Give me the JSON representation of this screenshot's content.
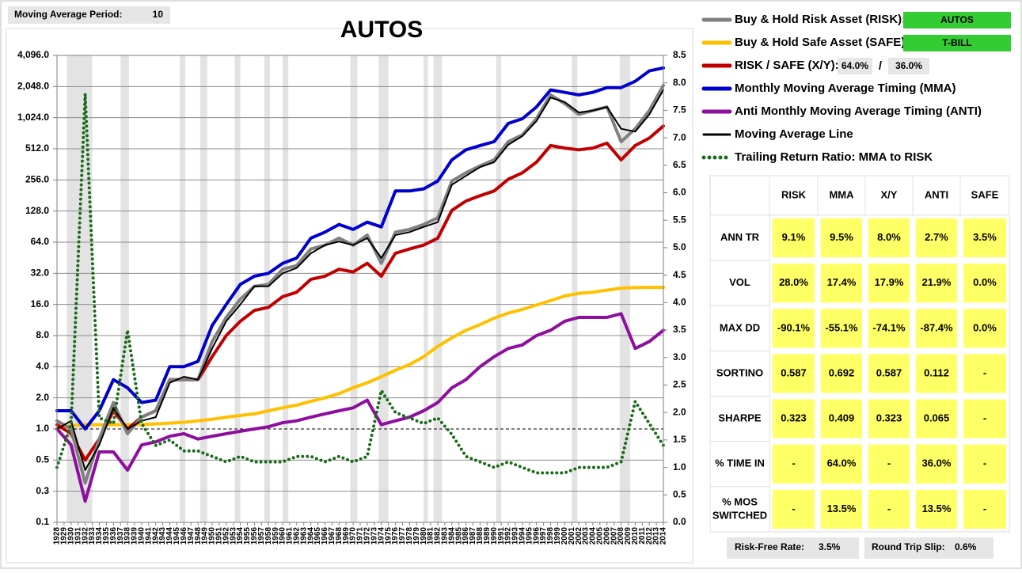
{
  "header": {
    "label": "Moving Average Period:",
    "value": 10
  },
  "controls": {
    "risk_asset": "AUTOS",
    "safe_asset": "T-BILL",
    "risk_weight": "64.0%",
    "separator": "/",
    "safe_weight": "36.0%"
  },
  "chart_data": {
    "type": "line",
    "title": "AUTOS",
    "log_scale": true,
    "grid": true,
    "xlim": [
      1928,
      2014
    ],
    "ylim": [
      0.125,
      4096
    ],
    "y2lim": [
      0,
      8.5
    ],
    "yticks": [
      {
        "value": 0.125,
        "label": "0.1"
      },
      {
        "value": 0.25,
        "label": "0.3"
      },
      0.5,
      {
        "value": 1,
        "label": "1.0"
      },
      {
        "value": 2,
        "label": "2.0"
      },
      {
        "value": 4,
        "label": "4.0"
      },
      {
        "value": 8,
        "label": "8.0"
      },
      {
        "value": 16,
        "label": "16.0"
      },
      {
        "value": 32,
        "label": "32.0"
      },
      {
        "value": 64,
        "label": "64.0"
      },
      {
        "value": 128,
        "label": "128.0"
      },
      {
        "value": 256,
        "label": "256.0"
      },
      {
        "value": 512,
        "label": "512.0"
      },
      {
        "value": 1024,
        "label": "1,024.0"
      },
      {
        "value": 2048,
        "label": "2,048.0"
      },
      {
        "value": 4096,
        "label": "4,096.0"
      }
    ],
    "y2ticks": [
      {
        "value": 0,
        "label": "0.0"
      },
      0.5,
      {
        "value": 1,
        "label": "1.0"
      },
      1.5,
      {
        "value": 2,
        "label": "2.0"
      },
      2.5,
      {
        "value": 3,
        "label": "3.0"
      },
      3.5,
      {
        "value": 4,
        "label": "4.0"
      },
      4.5,
      {
        "value": 5,
        "label": "5.0"
      },
      5.5,
      {
        "value": 6,
        "label": "6.0"
      },
      6.5,
      {
        "value": 7,
        "label": "7.0"
      },
      7.5,
      {
        "value": 8,
        "label": "8.0"
      },
      8.5
    ],
    "xticks": [
      1928,
      1929,
      1930,
      1931,
      1932,
      1933,
      1934,
      1935,
      1936,
      1937,
      1938,
      1939,
      1940,
      1941,
      1942,
      1943,
      1944,
      1945,
      1946,
      1947,
      1948,
      1949,
      1950,
      1951,
      1952,
      1953,
      1954,
      1955,
      1956,
      1957,
      1958,
      1959,
      1960,
      1961,
      1962,
      1963,
      1964,
      1965,
      1966,
      1967,
      1968,
      1969,
      1970,
      1971,
      1972,
      1973,
      1974,
      1975,
      1976,
      1977,
      1978,
      1979,
      1980,
      1981,
      1982,
      1983,
      1984,
      1985,
      1986,
      1987,
      1988,
      1989,
      1990,
      1991,
      1992,
      1993,
      1994,
      1995,
      1996,
      1997,
      1998,
      1999,
      2000,
      2001,
      2002,
      2003,
      2004,
      2005,
      2006,
      2007,
      2008,
      2009,
      2010,
      2011,
      2012,
      2013,
      2014
    ],
    "shaded_periods": [
      [
        1929.4,
        1933.0
      ],
      [
        1937.0,
        1938.2
      ],
      [
        1945.4,
        1946.2
      ],
      [
        1948.3,
        1949.3
      ],
      [
        1953.2,
        1954.0
      ],
      [
        1957.4,
        1958.2
      ],
      [
        1960.0,
        1960.8
      ],
      [
        1969.6,
        1970.6
      ],
      [
        1973.6,
        1975.0
      ],
      [
        1980.0,
        1980.6
      ],
      [
        1981.4,
        1982.6
      ],
      [
        1990.3,
        1991.0
      ],
      [
        2001.0,
        2001.8
      ],
      [
        2007.8,
        2009.3
      ]
    ],
    "x": [
      1928,
      1930,
      1932,
      1934,
      1936,
      1938,
      1940,
      1942,
      1944,
      1946,
      1948,
      1950,
      1952,
      1954,
      1956,
      1958,
      1960,
      1962,
      1964,
      1966,
      1968,
      1970,
      1972,
      1974,
      1976,
      1978,
      1980,
      1982,
      1984,
      1986,
      1988,
      1990,
      1992,
      1994,
      1996,
      1998,
      2000,
      2002,
      2004,
      2006,
      2008,
      2010,
      2012,
      2014
    ],
    "series": [
      {
        "name": "Buy & Hold Risk Asset (RISK):",
        "color": "#808080",
        "style": "solid",
        "values": [
          1.2,
          1.0,
          0.3,
          0.8,
          1.8,
          0.9,
          1.3,
          1.5,
          3,
          3,
          3,
          7,
          12,
          18,
          24,
          25,
          35,
          38,
          55,
          60,
          70,
          60,
          75,
          40,
          80,
          85,
          95,
          110,
          250,
          300,
          350,
          400,
          600,
          700,
          1000,
          1700,
          1400,
          1100,
          1200,
          1300,
          600,
          800,
          1200,
          2100
        ]
      },
      {
        "name": "Buy & Hold Safe Asset (SAFE):",
        "color": "#ffc000",
        "style": "solid",
        "values": [
          1.0,
          1.08,
          1.1,
          1.1,
          1.1,
          1.1,
          1.1,
          1.12,
          1.14,
          1.16,
          1.2,
          1.24,
          1.3,
          1.35,
          1.4,
          1.5,
          1.6,
          1.7,
          1.85,
          2.0,
          2.2,
          2.5,
          2.8,
          3.2,
          3.7,
          4.2,
          5.0,
          6.3,
          7.6,
          9.0,
          10.2,
          11.8,
          13.2,
          14.3,
          15.8,
          17.4,
          19.3,
          20.5,
          21,
          22,
          23,
          23.3,
          23.4,
          23.4
        ]
      },
      {
        "name": "RISK / SAFE (X/Y):",
        "color": "#c00000",
        "style": "solid",
        "values": [
          1.1,
          0.9,
          0.5,
          0.8,
          1.5,
          1.0,
          1.3,
          1.5,
          3,
          3,
          3,
          5,
          8,
          11,
          14,
          15,
          19,
          21,
          28,
          30,
          35,
          33,
          40,
          30,
          50,
          55,
          60,
          70,
          130,
          160,
          180,
          200,
          260,
          300,
          380,
          550,
          520,
          500,
          520,
          580,
          400,
          550,
          650,
          850
        ]
      },
      {
        "name": "Monthly Moving Average Timing (MMA)",
        "color": "#0000cc",
        "style": "solid",
        "values": [
          1.5,
          1.5,
          1.0,
          1.5,
          3,
          2.5,
          1.8,
          1.9,
          4,
          4,
          4.5,
          10,
          16,
          25,
          30,
          32,
          40,
          45,
          70,
          80,
          95,
          85,
          100,
          90,
          200,
          200,
          210,
          250,
          400,
          500,
          550,
          600,
          900,
          1000,
          1300,
          1900,
          1800,
          1700,
          1800,
          2000,
          2000,
          2300,
          2900,
          3100
        ]
      },
      {
        "name": "Anti Monthly Moving Average Timing (ANTI)",
        "color": "#8e0e9e",
        "style": "solid",
        "values": [
          1.0,
          0.7,
          0.2,
          0.6,
          0.6,
          0.4,
          0.7,
          0.75,
          0.85,
          0.9,
          0.8,
          0.85,
          0.9,
          0.95,
          1.0,
          1.05,
          1.15,
          1.2,
          1.3,
          1.4,
          1.5,
          1.6,
          1.9,
          1.1,
          1.2,
          1.3,
          1.5,
          1.8,
          2.5,
          3,
          4,
          5,
          6,
          6.5,
          8,
          9,
          11,
          12,
          12,
          12,
          13,
          6,
          7,
          9
        ]
      },
      {
        "name": "Moving Average Line",
        "color": "#000000",
        "style": "thin",
        "values": [
          1.0,
          1.2,
          0.4,
          0.7,
          1.6,
          1.0,
          1.2,
          1.3,
          2.8,
          3.2,
          3,
          6,
          11,
          16,
          24,
          24,
          32,
          36,
          50,
          60,
          65,
          60,
          70,
          45,
          75,
          80,
          90,
          100,
          230,
          280,
          340,
          380,
          560,
          680,
          950,
          1600,
          1450,
          1150,
          1200,
          1300,
          800,
          750,
          1100,
          1900
        ]
      },
      {
        "name": "Trailing Return Ratio: MMA to RISK",
        "color": "#1a6b1a",
        "style": "dotted",
        "axis": "y2",
        "values": [
          1.0,
          1.8,
          7.8,
          1.9,
          1.8,
          3.5,
          1.8,
          1.4,
          1.5,
          1.3,
          1.3,
          1.2,
          1.1,
          1.2,
          1.1,
          1.1,
          1.1,
          1.2,
          1.2,
          1.1,
          1.2,
          1.1,
          1.2,
          2.4,
          2.0,
          1.9,
          1.8,
          1.9,
          1.6,
          1.2,
          1.1,
          1.0,
          1.1,
          1.0,
          0.9,
          0.9,
          0.9,
          1.0,
          1.0,
          1.0,
          1.1,
          2.2,
          1.8,
          1.4
        ]
      }
    ]
  },
  "table": {
    "columns": [
      "RISK",
      "MMA",
      "X/Y",
      "ANTI",
      "SAFE"
    ],
    "rows": [
      {
        "label": "ANN TR",
        "cells": [
          "9.1%",
          "9.5%",
          "8.0%",
          "2.7%",
          "3.5%"
        ]
      },
      {
        "label": "VOL",
        "cells": [
          "28.0%",
          "17.4%",
          "17.9%",
          "21.9%",
          "0.0%"
        ]
      },
      {
        "label": "MAX DD",
        "cells": [
          "-90.1%",
          "-55.1%",
          "-74.1%",
          "-87.4%",
          "0.0%"
        ]
      },
      {
        "label": "SORTINO",
        "cells": [
          "0.587",
          "0.692",
          "0.587",
          "0.112",
          "-"
        ]
      },
      {
        "label": "SHARPE",
        "cells": [
          "0.323",
          "0.409",
          "0.323",
          "0.065",
          "-"
        ]
      },
      {
        "label": "% TIME IN",
        "cells": [
          "-",
          "64.0%",
          "-",
          "36.0%",
          "-"
        ]
      },
      {
        "label": "% MOS SWITCHED",
        "cells": [
          "-",
          "13.5%",
          "-",
          "13.5%",
          "-"
        ]
      }
    ]
  },
  "footer": {
    "risk_free_label": "Risk-Free Rate:",
    "risk_free_value": "3.5%",
    "slip_label": "Round Trip Slip:",
    "slip_value": "0.6%"
  }
}
